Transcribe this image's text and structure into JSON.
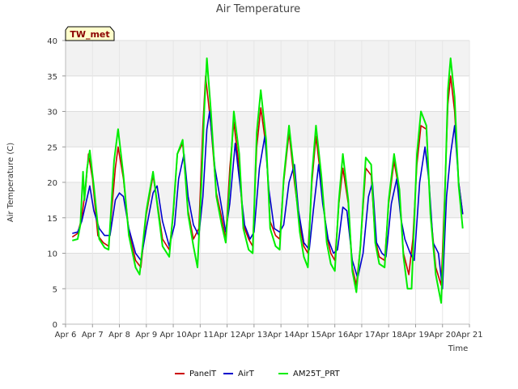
{
  "chart_data": {
    "type": "line",
    "title": "Air Temperature",
    "xlabel": "Time",
    "ylabel": "Air Temperature (C)",
    "tag": "TW_met",
    "ylim": [
      0,
      40
    ],
    "yticks": [
      0,
      5,
      10,
      15,
      20,
      25,
      30,
      35,
      40
    ],
    "xlim": [
      0,
      15
    ],
    "xticks": [
      {
        "x": 0,
        "label": "Apr 6"
      },
      {
        "x": 1,
        "label": "Apr 7"
      },
      {
        "x": 2,
        "label": "Apr 8"
      },
      {
        "x": 3,
        "label": "Apr 9"
      },
      {
        "x": 4,
        "label": "Apr 10"
      },
      {
        "x": 5,
        "label": "Apr 11"
      },
      {
        "x": 6,
        "label": "Apr 12"
      },
      {
        "x": 7,
        "label": "Apr 13"
      },
      {
        "x": 8,
        "label": "Apr 14"
      },
      {
        "x": 9,
        "label": "Apr 15"
      },
      {
        "x": 10,
        "label": "Apr 16"
      },
      {
        "x": 11,
        "label": "Apr 17"
      },
      {
        "x": 12,
        "label": "Apr 18"
      },
      {
        "x": 13,
        "label": "Apr 19"
      },
      {
        "x": 14,
        "label": "Apr 20"
      },
      {
        "x": 15,
        "label": "Apr 21"
      }
    ],
    "grid": true,
    "legend_position": "bottom",
    "series": [
      {
        "name": "PanelT",
        "color": "#cc0000",
        "points": [
          [
            0.25,
            12.3
          ],
          [
            0.45,
            12.8
          ],
          [
            0.6,
            15.0
          ],
          [
            0.75,
            19.5
          ],
          [
            0.85,
            24.0
          ],
          [
            1.0,
            20.5
          ],
          [
            1.2,
            12.5
          ],
          [
            1.4,
            11.5
          ],
          [
            1.6,
            11.0
          ],
          [
            1.85,
            22.0
          ],
          [
            1.95,
            25.0
          ],
          [
            2.15,
            20.5
          ],
          [
            2.35,
            13.0
          ],
          [
            2.6,
            9.0
          ],
          [
            2.8,
            8.0
          ],
          [
            3.0,
            15.5
          ],
          [
            3.25,
            21.0
          ],
          [
            3.45,
            16.0
          ],
          [
            3.6,
            12.0
          ],
          [
            3.85,
            10.5
          ],
          [
            4.0,
            15.5
          ],
          [
            4.15,
            24.0
          ],
          [
            4.35,
            25.5
          ],
          [
            4.55,
            16.0
          ],
          [
            4.75,
            12.0
          ],
          [
            4.95,
            13.5
          ],
          [
            5.1,
            28.0
          ],
          [
            5.2,
            35.0
          ],
          [
            5.4,
            28.0
          ],
          [
            5.6,
            18.5
          ],
          [
            5.8,
            15.0
          ],
          [
            5.95,
            12.0
          ],
          [
            6.1,
            22.0
          ],
          [
            6.25,
            28.5
          ],
          [
            6.45,
            22.0
          ],
          [
            6.6,
            14.0
          ],
          [
            6.8,
            12.0
          ],
          [
            6.95,
            11.0
          ],
          [
            7.1,
            25.0
          ],
          [
            7.25,
            30.5
          ],
          [
            7.45,
            25.0
          ],
          [
            7.6,
            14.5
          ],
          [
            7.8,
            12.5
          ],
          [
            7.95,
            12.0
          ],
          [
            8.1,
            20.0
          ],
          [
            8.3,
            27.0
          ],
          [
            8.5,
            20.0
          ],
          [
            8.7,
            14.0
          ],
          [
            8.85,
            11.0
          ],
          [
            9.0,
            10.0
          ],
          [
            9.15,
            20.0
          ],
          [
            9.3,
            26.5
          ],
          [
            9.5,
            20.0
          ],
          [
            9.7,
            12.5
          ],
          [
            9.85,
            10.0
          ],
          [
            10.0,
            9.0
          ],
          [
            10.15,
            17.0
          ],
          [
            10.3,
            22.0
          ],
          [
            10.5,
            17.0
          ],
          [
            10.65,
            8.0
          ],
          [
            10.8,
            5.5
          ],
          [
            10.95,
            11.0
          ],
          [
            11.15,
            22.0
          ],
          [
            11.35,
            21.0
          ],
          [
            11.5,
            12.0
          ],
          [
            11.65,
            9.5
          ],
          [
            11.85,
            9.0
          ],
          [
            12.0,
            17.0
          ],
          [
            12.2,
            23.0
          ],
          [
            12.4,
            18.5
          ],
          [
            12.55,
            10.0
          ],
          [
            12.75,
            7.0
          ],
          [
            12.9,
            12.0
          ],
          [
            13.05,
            22.5
          ],
          [
            13.2,
            28.0
          ],
          [
            13.4,
            27.5
          ],
          [
            13.55,
            16.0
          ],
          [
            13.75,
            8.0
          ],
          [
            13.95,
            5.5
          ],
          [
            14.05,
            15.0
          ],
          [
            14.2,
            31.0
          ],
          [
            14.3,
            35.0
          ],
          [
            14.45,
            30.0
          ],
          [
            14.6,
            20.0
          ],
          [
            14.75,
            15.5
          ]
        ]
      },
      {
        "name": "AirT",
        "color": "#0000cc",
        "points": [
          [
            0.25,
            12.8
          ],
          [
            0.45,
            13.0
          ],
          [
            0.6,
            14.5
          ],
          [
            0.75,
            17.0
          ],
          [
            0.9,
            19.5
          ],
          [
            1.05,
            16.0
          ],
          [
            1.25,
            13.5
          ],
          [
            1.45,
            12.5
          ],
          [
            1.65,
            12.5
          ],
          [
            1.85,
            17.5
          ],
          [
            2.0,
            18.5
          ],
          [
            2.15,
            18.0
          ],
          [
            2.35,
            13.5
          ],
          [
            2.6,
            10.0
          ],
          [
            2.8,
            9.0
          ],
          [
            3.0,
            13.5
          ],
          [
            3.25,
            18.5
          ],
          [
            3.4,
            19.5
          ],
          [
            3.6,
            14.5
          ],
          [
            3.85,
            11.0
          ],
          [
            4.05,
            14.0
          ],
          [
            4.2,
            20.5
          ],
          [
            4.4,
            24.0
          ],
          [
            4.55,
            18.0
          ],
          [
            4.75,
            14.0
          ],
          [
            4.95,
            12.5
          ],
          [
            5.1,
            18.0
          ],
          [
            5.25,
            27.5
          ],
          [
            5.35,
            30.0
          ],
          [
            5.55,
            22.0
          ],
          [
            5.75,
            17.5
          ],
          [
            5.95,
            13.0
          ],
          [
            6.1,
            17.0
          ],
          [
            6.3,
            25.5
          ],
          [
            6.5,
            19.0
          ],
          [
            6.65,
            14.0
          ],
          [
            6.85,
            12.0
          ],
          [
            7.0,
            13.0
          ],
          [
            7.2,
            22.0
          ],
          [
            7.4,
            26.5
          ],
          [
            7.55,
            19.0
          ],
          [
            7.75,
            13.5
          ],
          [
            7.95,
            13.0
          ],
          [
            8.1,
            14.0
          ],
          [
            8.3,
            20.0
          ],
          [
            8.5,
            22.5
          ],
          [
            8.65,
            16.0
          ],
          [
            8.85,
            11.5
          ],
          [
            9.05,
            10.5
          ],
          [
            9.2,
            16.0
          ],
          [
            9.4,
            22.5
          ],
          [
            9.55,
            17.0
          ],
          [
            9.75,
            12.0
          ],
          [
            9.95,
            10.0
          ],
          [
            10.1,
            10.5
          ],
          [
            10.3,
            16.5
          ],
          [
            10.45,
            16.0
          ],
          [
            10.65,
            9.0
          ],
          [
            10.85,
            6.5
          ],
          [
            11.05,
            10.0
          ],
          [
            11.25,
            18.0
          ],
          [
            11.4,
            20.0
          ],
          [
            11.55,
            11.5
          ],
          [
            11.75,
            10.0
          ],
          [
            11.9,
            9.5
          ],
          [
            12.1,
            17.0
          ],
          [
            12.3,
            20.5
          ],
          [
            12.45,
            15.0
          ],
          [
            12.6,
            12.0
          ],
          [
            12.8,
            10.0
          ],
          [
            12.95,
            9.0
          ],
          [
            13.15,
            20.0
          ],
          [
            13.35,
            25.0
          ],
          [
            13.5,
            20.0
          ],
          [
            13.65,
            11.5
          ],
          [
            13.85,
            10.0
          ],
          [
            14.0,
            5.0
          ],
          [
            14.15,
            18.0
          ],
          [
            14.3,
            24.0
          ],
          [
            14.45,
            28.0
          ],
          [
            14.6,
            20.0
          ],
          [
            14.75,
            15.5
          ]
        ]
      },
      {
        "name": "AM25T_PRT",
        "color": "#00ee00",
        "points": [
          [
            0.25,
            11.8
          ],
          [
            0.45,
            12.0
          ],
          [
            0.55,
            14.0
          ],
          [
            0.65,
            21.5
          ],
          [
            0.7,
            17.5
          ],
          [
            0.8,
            22.0
          ],
          [
            0.9,
            24.5
          ],
          [
            1.05,
            19.5
          ],
          [
            1.25,
            12.0
          ],
          [
            1.45,
            10.8
          ],
          [
            1.6,
            10.5
          ],
          [
            1.8,
            23.0
          ],
          [
            1.95,
            27.5
          ],
          [
            2.15,
            21.0
          ],
          [
            2.35,
            12.5
          ],
          [
            2.6,
            8.0
          ],
          [
            2.75,
            7.0
          ],
          [
            3.0,
            16.0
          ],
          [
            3.25,
            21.5
          ],
          [
            3.45,
            15.5
          ],
          [
            3.6,
            11.0
          ],
          [
            3.85,
            9.5
          ],
          [
            4.0,
            16.0
          ],
          [
            4.15,
            24.0
          ],
          [
            4.35,
            26.0
          ],
          [
            4.55,
            15.5
          ],
          [
            4.75,
            11.0
          ],
          [
            4.9,
            8.0
          ],
          [
            5.05,
            20.0
          ],
          [
            5.15,
            30.0
          ],
          [
            5.25,
            37.5
          ],
          [
            5.4,
            30.0
          ],
          [
            5.6,
            18.0
          ],
          [
            5.8,
            14.0
          ],
          [
            5.95,
            11.5
          ],
          [
            6.1,
            20.0
          ],
          [
            6.25,
            30.0
          ],
          [
            6.45,
            24.0
          ],
          [
            6.6,
            13.5
          ],
          [
            6.8,
            10.5
          ],
          [
            6.95,
            10.0
          ],
          [
            7.1,
            27.0
          ],
          [
            7.25,
            33.0
          ],
          [
            7.45,
            26.0
          ],
          [
            7.6,
            13.5
          ],
          [
            7.8,
            11.0
          ],
          [
            7.95,
            10.5
          ],
          [
            8.1,
            20.5
          ],
          [
            8.3,
            28.0
          ],
          [
            8.5,
            21.0
          ],
          [
            8.7,
            13.0
          ],
          [
            8.85,
            9.5
          ],
          [
            9.0,
            8.0
          ],
          [
            9.15,
            21.0
          ],
          [
            9.3,
            28.0
          ],
          [
            9.5,
            21.0
          ],
          [
            9.7,
            11.5
          ],
          [
            9.85,
            8.5
          ],
          [
            10.0,
            7.5
          ],
          [
            10.15,
            17.5
          ],
          [
            10.3,
            24.0
          ],
          [
            10.5,
            17.5
          ],
          [
            10.65,
            7.5
          ],
          [
            10.8,
            4.5
          ],
          [
            10.95,
            11.0
          ],
          [
            11.15,
            23.5
          ],
          [
            11.35,
            22.5
          ],
          [
            11.5,
            11.5
          ],
          [
            11.65,
            8.5
          ],
          [
            11.85,
            8.0
          ],
          [
            12.0,
            17.5
          ],
          [
            12.2,
            24.0
          ],
          [
            12.4,
            19.0
          ],
          [
            12.55,
            9.5
          ],
          [
            12.7,
            5.0
          ],
          [
            12.85,
            5.0
          ],
          [
            13.05,
            24.0
          ],
          [
            13.2,
            30.0
          ],
          [
            13.4,
            28.0
          ],
          [
            13.55,
            15.5
          ],
          [
            13.75,
            7.0
          ],
          [
            13.95,
            3.0
          ],
          [
            14.05,
            13.0
          ],
          [
            14.2,
            33.0
          ],
          [
            14.3,
            37.5
          ],
          [
            14.45,
            32.0
          ],
          [
            14.6,
            19.5
          ],
          [
            14.75,
            13.5
          ]
        ]
      }
    ]
  }
}
